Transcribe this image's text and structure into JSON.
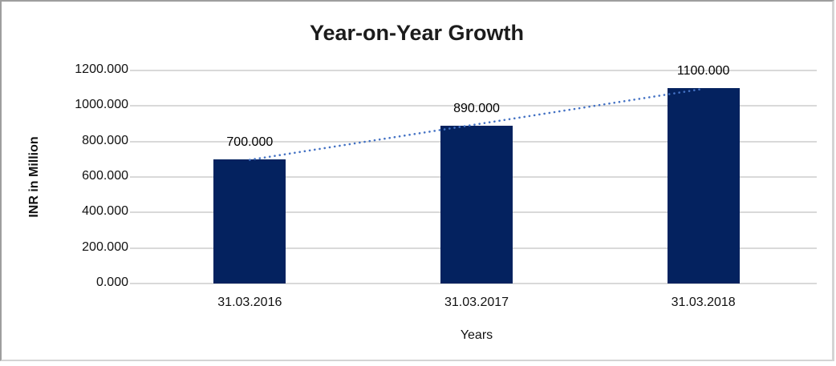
{
  "chart_data": {
    "type": "bar",
    "title": "Year-on-Year Growth",
    "xlabel": "Years",
    "ylabel": "INR in Million",
    "categories": [
      "31.03.2016",
      "31.03.2017",
      "31.03.2018"
    ],
    "values": [
      700,
      890,
      1100
    ],
    "data_labels": [
      "700.000",
      "890.000",
      "1100.000"
    ],
    "ylim": [
      0,
      1200
    ],
    "ytick_step": 200,
    "ytick_labels": [
      "0.000",
      "200.000",
      "400.000",
      "600.000",
      "800.000",
      "1000.000",
      "1200.000"
    ],
    "grid": true,
    "legend": "none",
    "trendline": {
      "type": "linear",
      "style": "dotted",
      "fitted_values": [
        696.667,
        896.667,
        1096.667
      ]
    },
    "colors": {
      "bar": "#04225f",
      "trendline": "#4472c4",
      "gridline": "#d9d9d9",
      "text": "#111111",
      "frame_border_dark": "#9e9e9e",
      "frame_border_light": "#d4d4d4"
    }
  }
}
